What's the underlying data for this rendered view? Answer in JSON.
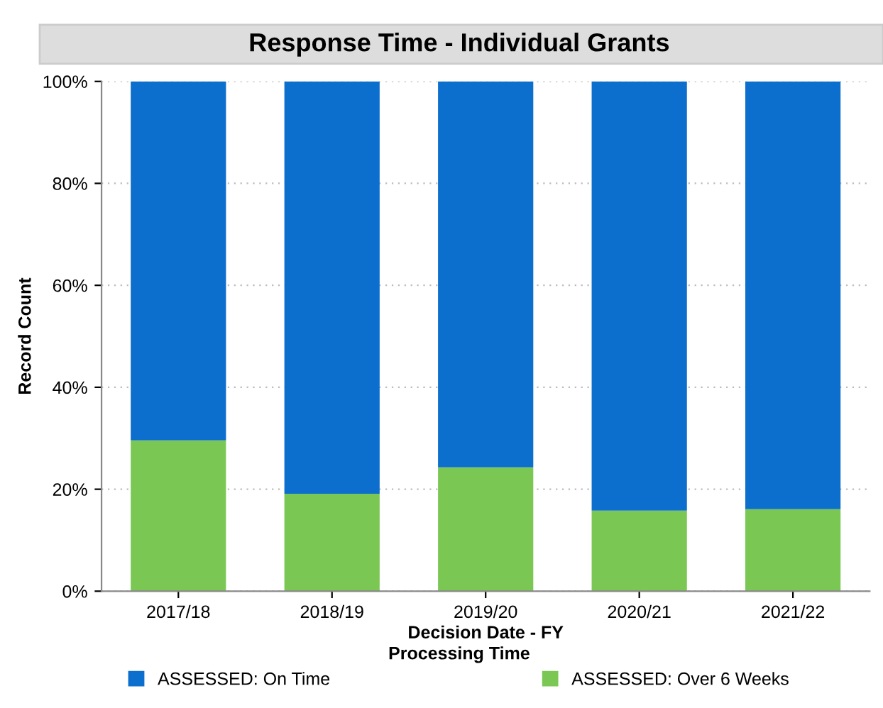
{
  "chart_data": {
    "type": "bar",
    "stacked": true,
    "title": "Response Time - Individual Grants",
    "xlabel": "Decision Date - FY",
    "ylabel": "Record Count",
    "legend_title": "Processing Time",
    "categories": [
      "2017/18",
      "2018/19",
      "2019/20",
      "2020/21",
      "2021/22"
    ],
    "series": [
      {
        "name": "ASSESSED: Over 6 Weeks",
        "color": "#7ac853",
        "values": [
          29.6,
          19.1,
          24.3,
          15.8,
          16.1
        ]
      },
      {
        "name": "ASSESSED: On Time",
        "color": "#0c6ecd",
        "values": [
          70.4,
          80.9,
          75.7,
          84.2,
          83.9
        ]
      }
    ],
    "ylim": [
      0,
      100
    ],
    "yticks": [
      {
        "value": 0,
        "label": "0%"
      },
      {
        "value": 20,
        "label": "20%"
      },
      {
        "value": 40,
        "label": "40%"
      },
      {
        "value": 60,
        "label": "60%"
      },
      {
        "value": 80,
        "label": "80%"
      },
      {
        "value": 100,
        "label": "100%"
      }
    ],
    "grid": "y",
    "legend": "bottom"
  }
}
